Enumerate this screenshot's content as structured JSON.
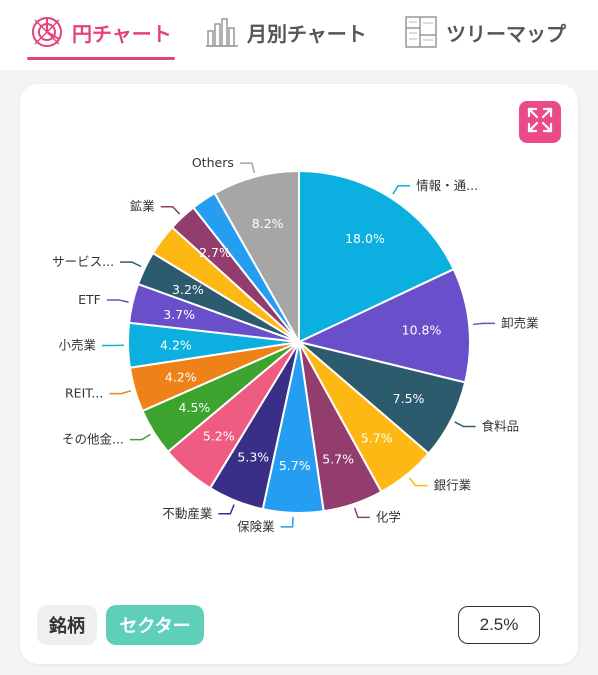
{
  "tabs": [
    {
      "label": "円チャート",
      "icon": "pie-target-icon",
      "active": true
    },
    {
      "label": "月別チャート",
      "icon": "bar-chart-icon",
      "active": false
    },
    {
      "label": "ツリーマップ",
      "icon": "treemap-icon",
      "active": false
    }
  ],
  "colors": {
    "accent": "#e5417d",
    "sector_button": "#5fcfba"
  },
  "expand_icon": "expand-arrows-icon",
  "toggle": {
    "brand_label": "銘柄",
    "sector_label": "セクター",
    "selected": "セクター"
  },
  "threshold_label": "2.5%",
  "chart_data": {
    "type": "pie",
    "start": "12 o'clock, clockwise",
    "slices": [
      {
        "label": "情報・通...",
        "value": 18.0,
        "pct_text": "18.0%",
        "color": "#0bb0e0"
      },
      {
        "label": "卸売業",
        "value": 10.8,
        "pct_text": "10.8%",
        "color": "#6a4fcb"
      },
      {
        "label": "食料品",
        "value": 7.5,
        "pct_text": "7.5%",
        "color": "#2d5b6e"
      },
      {
        "label": "銀行業",
        "value": 5.7,
        "pct_text": "5.7%",
        "color": "#fdb813"
      },
      {
        "label": "化学",
        "value": 5.7,
        "pct_text": "5.7%",
        "color": "#933c6e"
      },
      {
        "label": "保険業",
        "value": 5.7,
        "pct_text": "5.7%",
        "color": "#259ef2"
      },
      {
        "label": "不動産業",
        "value": 5.3,
        "pct_text": "5.3%",
        "color": "#3a2f86"
      },
      {
        "label": "",
        "value": 5.2,
        "pct_text": "5.2%",
        "color": "#ef5c82"
      },
      {
        "label": "その他金...",
        "value": 4.5,
        "pct_text": "4.5%",
        "color": "#3ba32e"
      },
      {
        "label": "REIT...",
        "value": 4.2,
        "pct_text": "4.2%",
        "color": "#ee8218"
      },
      {
        "label": "小売業",
        "value": 4.2,
        "pct_text": "4.2%",
        "color": "#0bb0e0"
      },
      {
        "label": "ETF",
        "value": 3.7,
        "pct_text": "3.7%",
        "color": "#6a4fcb"
      },
      {
        "label": "サービス...",
        "value": 3.2,
        "pct_text": "3.2%",
        "color": "#2d5b6e"
      },
      {
        "label": "",
        "value": 3.0,
        "pct_text": "",
        "color": "#fdb813"
      },
      {
        "label": "鉱業",
        "value": 2.7,
        "pct_text": "2.7%",
        "color": "#933c6e"
      },
      {
        "label": "",
        "value": 2.4,
        "pct_text": "",
        "color": "#259ef2"
      },
      {
        "label": "Others",
        "value": 8.2,
        "pct_text": "8.2%",
        "color": "#a6a6a6"
      }
    ]
  }
}
